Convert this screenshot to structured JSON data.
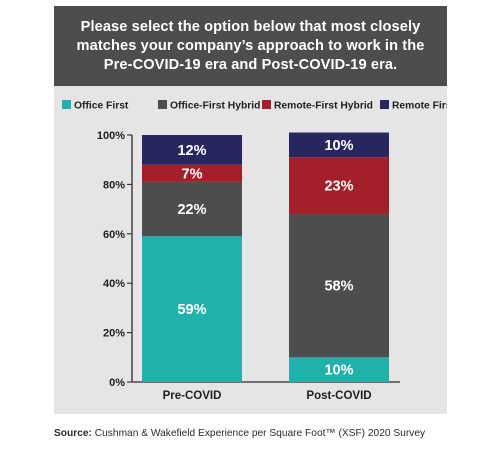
{
  "title": "Please select the option below that most closely matches your company’s approach to work in the Pre-COVID-19 era and Post-COVID-19 era.",
  "source_label": "Source:",
  "source_text": "Cushman & Wakefield Experience per Square Foot™ (XSF) 2020 Survey",
  "chart_data": {
    "type": "bar",
    "stacked": true,
    "categories": [
      "Pre-COVID",
      "Post-COVID"
    ],
    "series": [
      {
        "name": "Office First",
        "values": [
          59,
          10
        ],
        "labels": [
          "59%",
          "10%"
        ],
        "color": "#20b2aa"
      },
      {
        "name": "Office-First Hybrid",
        "values": [
          22,
          58
        ],
        "labels": [
          "22%",
          "58%"
        ],
        "color": "#4c4d4f"
      },
      {
        "name": "Remote-First Hybrid",
        "values": [
          7,
          23
        ],
        "labels": [
          "7%",
          "23%"
        ],
        "color": "#a3202a"
      },
      {
        "name": "Remote First",
        "values": [
          12,
          10
        ],
        "labels": [
          "12%",
          "10%"
        ],
        "color": "#27265e"
      }
    ],
    "yticks": [
      "0%",
      "20%",
      "40%",
      "60%",
      "80%",
      "100%"
    ],
    "ylim": [
      0,
      100
    ],
    "legend_position": "top",
    "grid": false
  }
}
